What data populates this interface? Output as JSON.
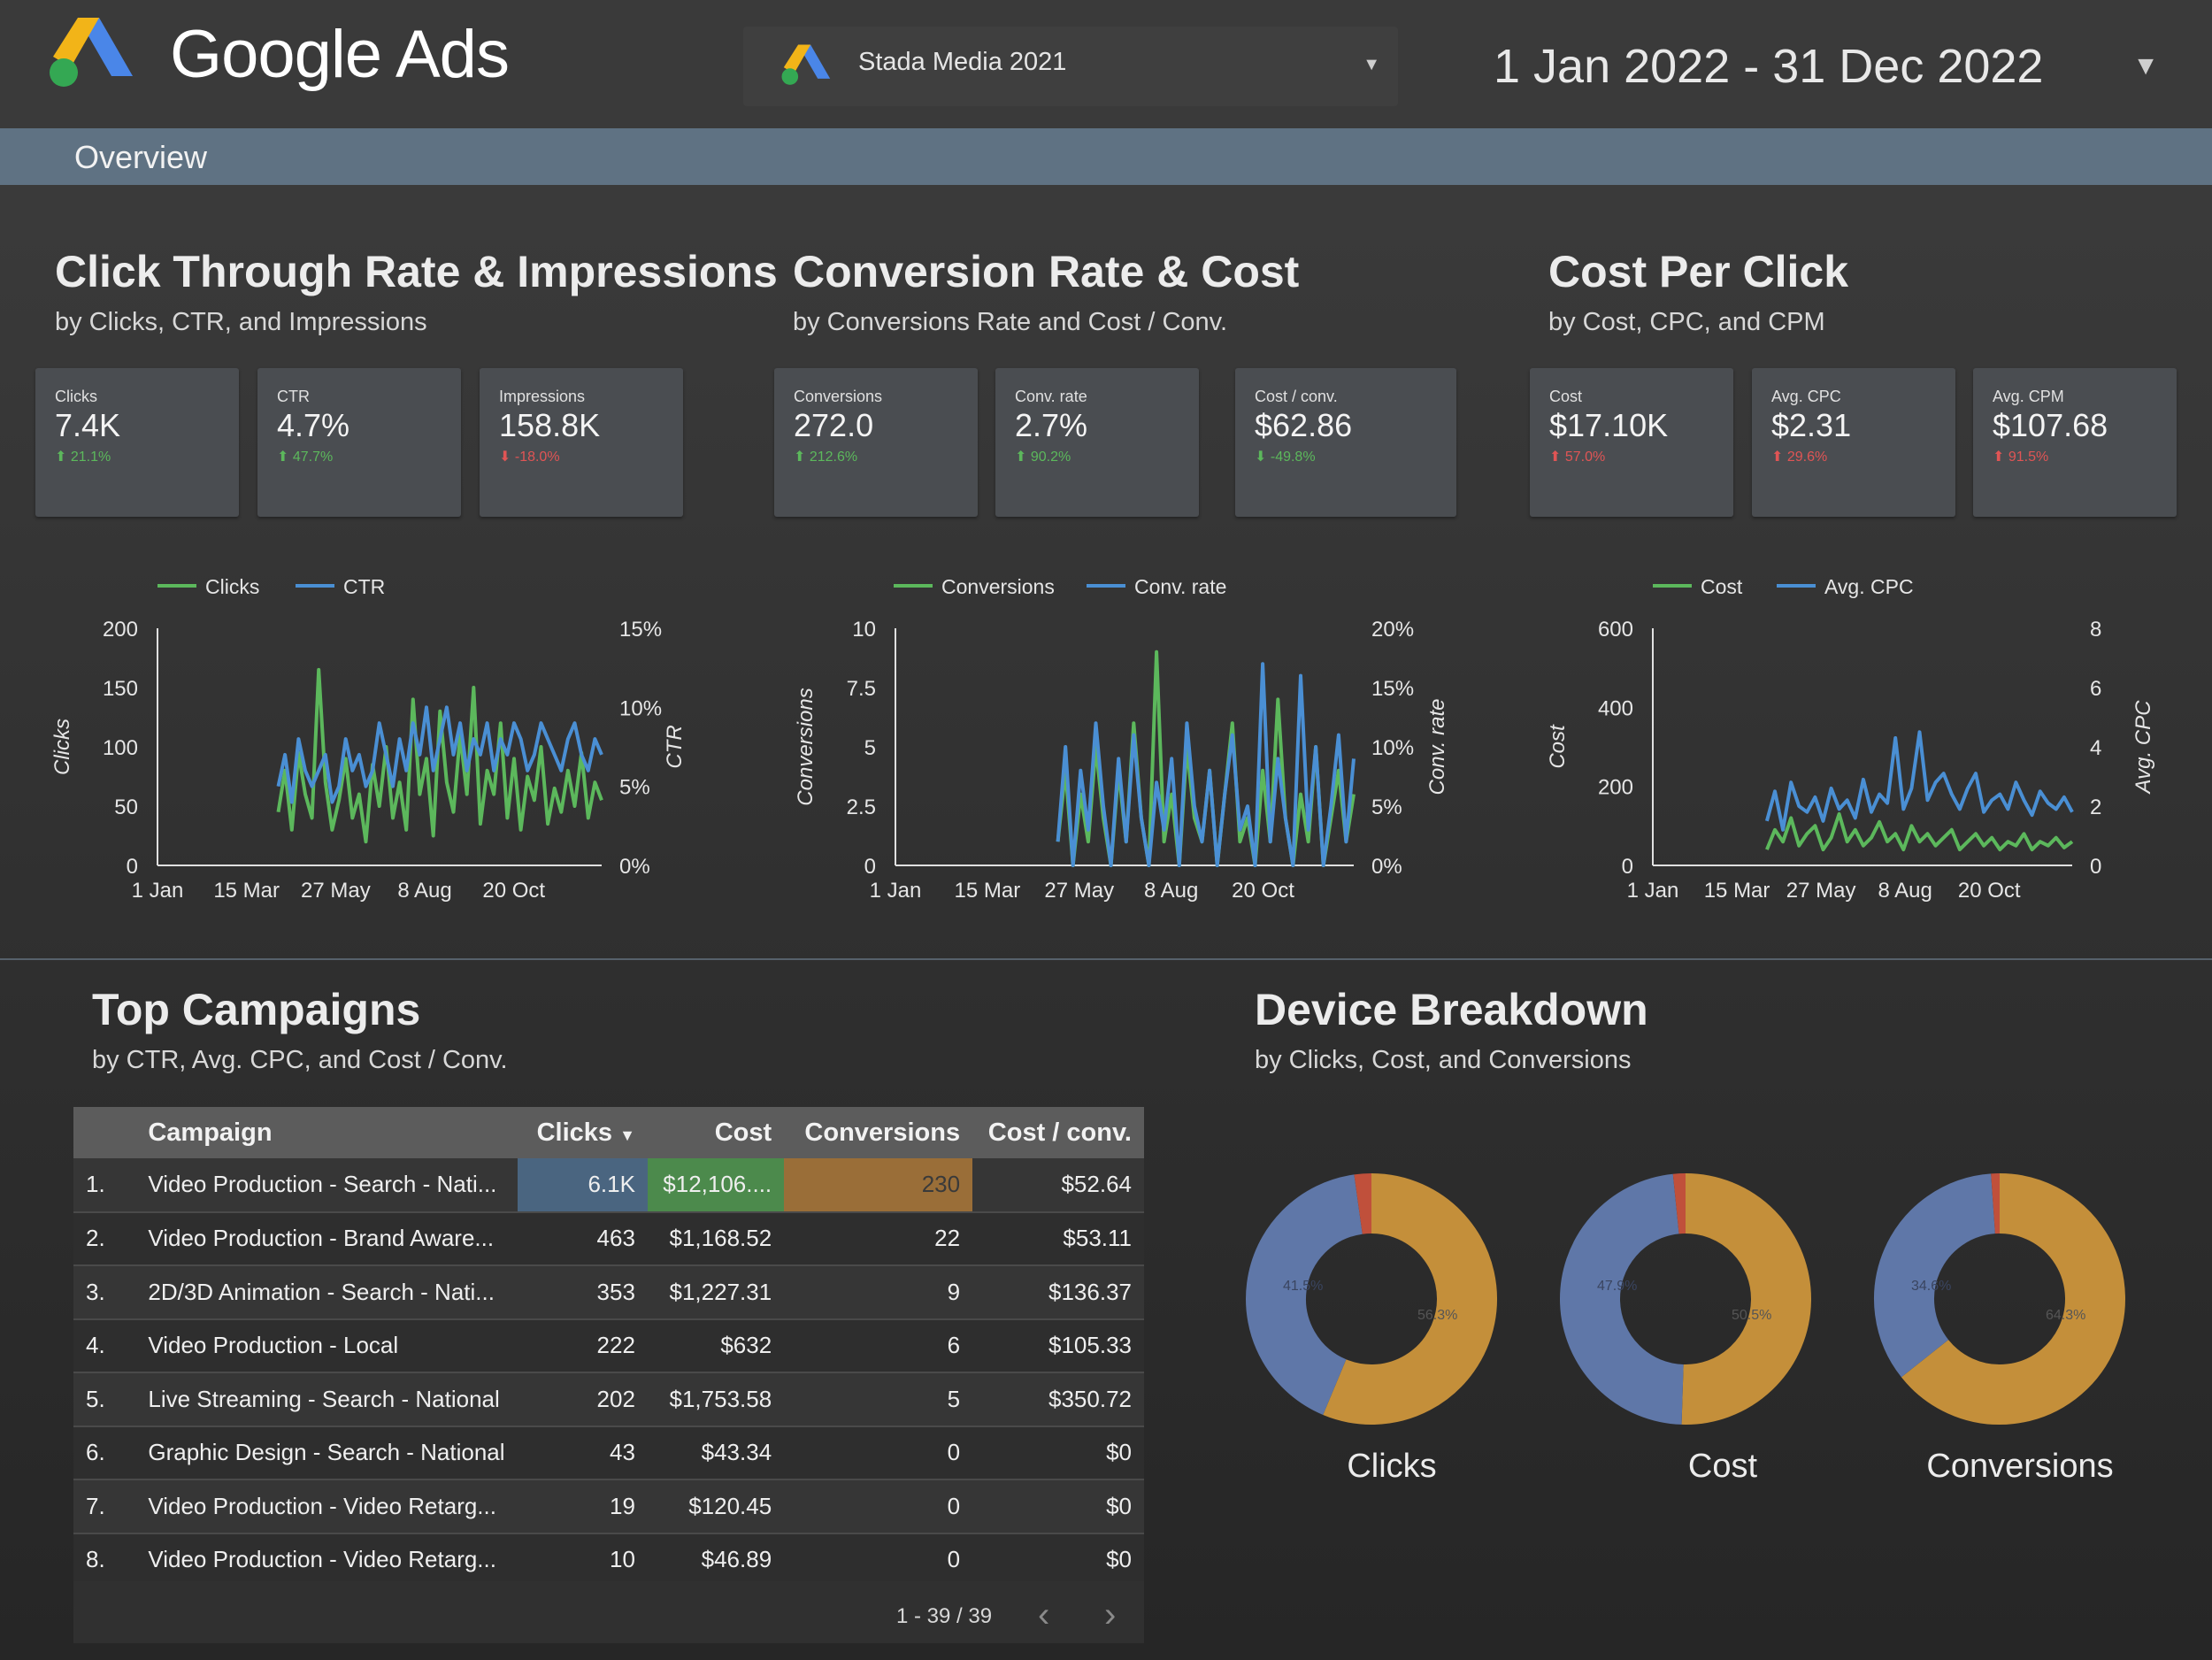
{
  "header": {
    "brand": "Google Ads",
    "account": "Stada Media 2021",
    "date_range": "1 Jan 2022 - 31 Dec 2022",
    "logo_icon": "google-ads-logo",
    "dropdown_icon": "caret-down-icon"
  },
  "nav": {
    "tab": "Overview"
  },
  "colors": {
    "green": "#5cb85c",
    "blue": "#4a8fd4",
    "donut_blue": "#5f77a8",
    "donut_orange": "#c48f3a",
    "donut_red": "#c0503b"
  },
  "sections": {
    "ctr": {
      "title": "Click Through Rate & Impressions",
      "subtitle": "by Clicks, CTR, and Impressions"
    },
    "conv": {
      "title": "Conversion Rate & Cost",
      "subtitle": "by Conversions Rate and Cost / Conv."
    },
    "cpc": {
      "title": "Cost Per Click",
      "subtitle": "by Cost, CPC, and CPM"
    },
    "campaigns": {
      "title": "Top Campaigns",
      "subtitle": "by CTR, Avg. CPC, and Cost / Conv."
    },
    "device": {
      "title": "Device Breakdown",
      "subtitle": "by Clicks, Cost, and Conversions"
    }
  },
  "kpis": [
    {
      "label": "Clicks",
      "value": "7.4K",
      "change": "21.1%",
      "dir": "up",
      "good": true
    },
    {
      "label": "CTR",
      "value": "4.7%",
      "change": "47.7%",
      "dir": "up",
      "good": true
    },
    {
      "label": "Impressions",
      "value": "158.8K",
      "change": "-18.0%",
      "dir": "down",
      "good": false
    },
    {
      "label": "Conversions",
      "value": "272.0",
      "change": "212.6%",
      "dir": "up",
      "good": true
    },
    {
      "label": "Conv. rate",
      "value": "2.7%",
      "change": "90.2%",
      "dir": "up",
      "good": true
    },
    {
      "label": "Cost / conv.",
      "value": "$62.86",
      "change": "-49.8%",
      "dir": "down",
      "good": true
    },
    {
      "label": "Cost",
      "value": "$17.10K",
      "change": "57.0%",
      "dir": "up",
      "good": false
    },
    {
      "label": "Avg. CPC",
      "value": "$2.31",
      "change": "29.6%",
      "dir": "up",
      "good": false
    },
    {
      "label": "Avg. CPM",
      "value": "$107.68",
      "change": "91.5%",
      "dir": "up",
      "good": false
    }
  ],
  "chart_data": [
    {
      "type": "line",
      "legend": [
        "Clicks",
        "CTR"
      ],
      "ylabel_left": "Clicks",
      "ylabel_right": "CTR",
      "y_left_ticks": [
        "200",
        "150",
        "100",
        "50",
        "0"
      ],
      "y_right_ticks": [
        "15%",
        "10%",
        "5%",
        "0%"
      ],
      "x_ticks": [
        "1 Jan",
        "15 Mar",
        "27 May",
        "8 Aug",
        "20 Oct"
      ],
      "ylim_left": [
        0,
        200
      ],
      "ylim_right": [
        0,
        15
      ],
      "series": [
        {
          "name": "Clicks",
          "color": "#5cb85c",
          "x_start": "2022-04-10",
          "x_end": "2022-12-31",
          "values": [
            45,
            80,
            30,
            95,
            60,
            40,
            165,
            70,
            30,
            55,
            90,
            40,
            60,
            20,
            85,
            50,
            100,
            40,
            70,
            30,
            140,
            60,
            90,
            25,
            130,
            70,
            45,
            110,
            60,
            150,
            35,
            80,
            60,
            120,
            40,
            90,
            30,
            75,
            55,
            100,
            35,
            65,
            45,
            80,
            50,
            95,
            40,
            70,
            55
          ]
        },
        {
          "name": "CTR",
          "color": "#4a8fd4",
          "x_start": "2022-04-10",
          "x_end": "2022-12-31",
          "values": [
            5,
            7,
            4,
            8,
            6,
            5,
            6,
            7,
            4,
            5,
            8,
            6,
            7,
            5,
            6,
            9,
            7,
            5,
            8,
            6,
            9,
            7,
            10,
            6,
            8,
            10,
            7,
            9,
            6,
            8,
            7,
            9,
            6,
            8,
            7,
            9,
            8,
            6,
            7,
            9,
            8,
            7,
            6,
            8,
            9,
            7,
            6,
            8,
            7
          ]
        }
      ]
    },
    {
      "type": "line",
      "legend": [
        "Conversions",
        "Conv. rate"
      ],
      "ylabel_left": "Conversions",
      "ylabel_right": "Conv. rate",
      "y_left_ticks": [
        "10",
        "7.5",
        "5",
        "2.5",
        "0"
      ],
      "y_right_ticks": [
        "20%",
        "15%",
        "10%",
        "5%",
        "0%"
      ],
      "x_ticks": [
        "1 Jan",
        "15 Mar",
        "27 May",
        "8 Aug",
        "20 Oct"
      ],
      "ylim_left": [
        0,
        10
      ],
      "ylim_right": [
        0,
        20
      ],
      "series": [
        {
          "name": "Conversions",
          "color": "#5cb85c",
          "x_start": "2022-05-10",
          "x_end": "2022-12-31",
          "values": [
            1,
            4,
            0,
            3,
            1,
            5,
            2,
            0,
            4,
            1,
            6,
            2,
            0,
            9,
            1,
            3,
            0,
            5,
            2,
            1,
            4,
            0,
            3,
            6,
            1,
            2,
            0,
            4,
            1,
            7,
            2,
            0,
            3,
            1,
            5,
            0,
            2,
            4,
            1,
            3
          ]
        },
        {
          "name": "Conv. rate",
          "color": "#4a8fd4",
          "x_start": "2022-05-10",
          "x_end": "2022-12-31",
          "values": [
            2,
            10,
            0,
            8,
            3,
            12,
            5,
            0,
            9,
            2,
            11,
            4,
            0,
            7,
            3,
            9,
            0,
            12,
            5,
            2,
            8,
            0,
            6,
            11,
            3,
            5,
            0,
            17,
            2,
            9,
            4,
            0,
            16,
            3,
            10,
            0,
            5,
            11,
            2,
            9
          ]
        }
      ]
    },
    {
      "type": "line",
      "legend": [
        "Cost",
        "Avg. CPC"
      ],
      "ylabel_left": "Cost",
      "ylabel_right": "Avg. CPC",
      "y_left_ticks": [
        "600",
        "400",
        "200",
        "0"
      ],
      "y_right_ticks": [
        "8",
        "6",
        "4",
        "2",
        "0"
      ],
      "x_ticks": [
        "1 Jan",
        "15 Mar",
        "27 May",
        "8 Aug",
        "20 Oct"
      ],
      "ylim_left": [
        0,
        600
      ],
      "ylim_right": [
        0,
        8
      ],
      "series": [
        {
          "name": "Cost",
          "color": "#5cb85c",
          "x_start": "2022-04-10",
          "x_end": "2022-12-31",
          "values": [
            40,
            90,
            60,
            120,
            50,
            80,
            100,
            40,
            70,
            130,
            60,
            90,
            50,
            70,
            110,
            60,
            80,
            40,
            100,
            60,
            80,
            50,
            70,
            90,
            40,
            60,
            80,
            50,
            70,
            40,
            60,
            50,
            80,
            40,
            60,
            50,
            70,
            45,
            60
          ]
        },
        {
          "name": "Avg. CPC",
          "color": "#4a8fd4",
          "x_start": "2022-04-10",
          "x_end": "2022-12-31",
          "values": [
            1.5,
            2.5,
            1.2,
            2.8,
            2,
            1.8,
            2.3,
            1.5,
            2.6,
            1.9,
            2.2,
            1.6,
            2.9,
            1.8,
            2.4,
            2.1,
            4.3,
            1.9,
            2.6,
            4.5,
            2.2,
            2.8,
            3.1,
            2.4,
            1.9,
            2.6,
            3.1,
            1.8,
            2.2,
            2.4,
            1.9,
            2.8,
            2.2,
            1.7,
            2.5,
            2.1,
            1.9,
            2.3,
            1.8
          ]
        }
      ]
    },
    {
      "type": "pie",
      "title": "Clicks",
      "slices": [
        {
          "label": "",
          "value": 56.3
        },
        {
          "label": "",
          "value": 41.5
        },
        {
          "label": "",
          "value": 2.2
        }
      ],
      "labels": [
        "56.3%",
        "41.5%"
      ]
    },
    {
      "type": "pie",
      "title": "Cost",
      "slices": [
        {
          "label": "",
          "value": 50.5
        },
        {
          "label": "",
          "value": 47.9
        },
        {
          "label": "",
          "value": 1.6
        }
      ],
      "labels": [
        "50.5%",
        "47.9%"
      ]
    },
    {
      "type": "pie",
      "title": "Conversions",
      "slices": [
        {
          "label": "",
          "value": 64.3
        },
        {
          "label": "",
          "value": 34.6
        },
        {
          "label": "",
          "value": 1.1
        }
      ],
      "labels": [
        "64.3%",
        "34.6%"
      ]
    }
  ],
  "campaigns": {
    "columns": [
      "Campaign",
      "Clicks",
      "Cost",
      "Conversions",
      "Cost / conv."
    ],
    "sort_icon": "sort-down-icon",
    "rows": [
      {
        "idx": "1.",
        "name": "Video Production - Search - Nati...",
        "clicks": "6.1K",
        "cost": "$12,106....",
        "conv": "230",
        "cpc": "$52.64"
      },
      {
        "idx": "2.",
        "name": "Video Production - Brand Aware...",
        "clicks": "463",
        "cost": "$1,168.52",
        "conv": "22",
        "cpc": "$53.11"
      },
      {
        "idx": "3.",
        "name": "2D/3D Animation - Search - Nati...",
        "clicks": "353",
        "cost": "$1,227.31",
        "conv": "9",
        "cpc": "$136.37"
      },
      {
        "idx": "4.",
        "name": "Video Production - Local",
        "clicks": "222",
        "cost": "$632",
        "conv": "6",
        "cpc": "$105.33"
      },
      {
        "idx": "5.",
        "name": "Live Streaming - Search - National",
        "clicks": "202",
        "cost": "$1,753.58",
        "conv": "5",
        "cpc": "$350.72"
      },
      {
        "idx": "6.",
        "name": "Graphic Design - Search - National",
        "clicks": "43",
        "cost": "$43.34",
        "conv": "0",
        "cpc": "$0"
      },
      {
        "idx": "7.",
        "name": "Video Production - Video Retarg...",
        "clicks": "19",
        "cost": "$120.45",
        "conv": "0",
        "cpc": "$0"
      },
      {
        "idx": "8.",
        "name": "Video Production - Video Retarg...",
        "clicks": "10",
        "cost": "$46.89",
        "conv": "0",
        "cpc": "$0"
      }
    ],
    "pagination": "1 - 39 / 39",
    "prev_icon": "chevron-left-icon",
    "next_icon": "chevron-right-icon"
  }
}
